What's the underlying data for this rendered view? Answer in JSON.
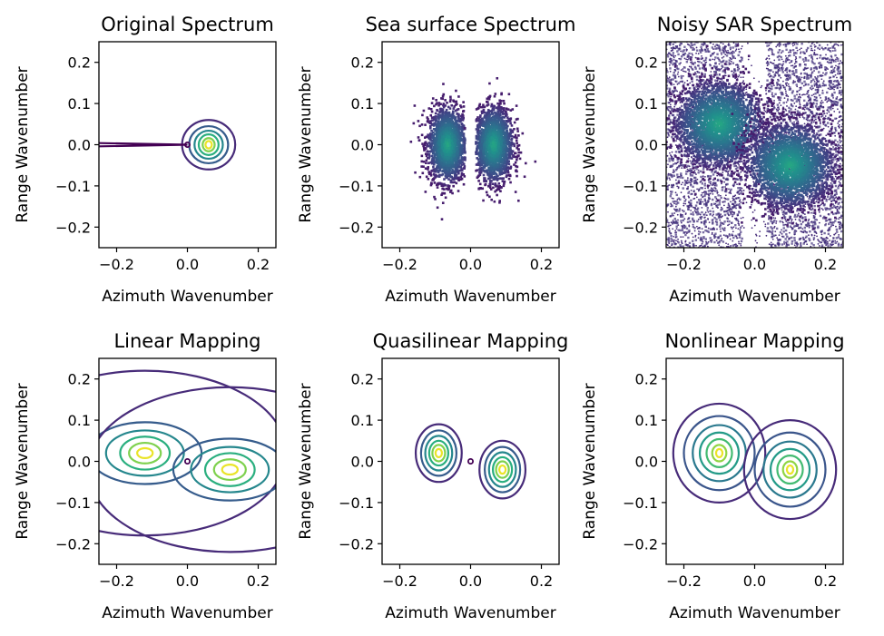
{
  "figure": {
    "palette": [
      "#440154",
      "#472d7b",
      "#3b528b",
      "#2c728e",
      "#21918c",
      "#28ae80",
      "#5ec962",
      "#addc30",
      "#fde725"
    ],
    "frame_color": "#000000",
    "background": "#ffffff"
  },
  "chart_data": [
    {
      "type": "contour",
      "title": "Original Spectrum",
      "xlabel": "Azimuth Wavenumber",
      "ylabel": "Range Wavenumber",
      "xlim": [
        -0.25,
        0.25
      ],
      "ylim": [
        -0.25,
        0.25
      ],
      "xticks": [
        -0.2,
        0.0,
        0.2
      ],
      "xtick_labels": [
        "−0.2",
        "0.0",
        "0.2"
      ],
      "yticks": [
        -0.2,
        -0.1,
        0.0,
        0.1,
        0.2
      ],
      "ytick_labels": [
        "−0.2",
        "−0.1",
        "0.0",
        "0.1",
        "0.2"
      ],
      "grid": false,
      "features": [
        {
          "kind": "contours",
          "center": [
            0.06,
            0.0
          ],
          "half_widths": [
            [
              0.075,
              0.06
            ],
            [
              0.055,
              0.045
            ],
            [
              0.04,
              0.034
            ],
            [
              0.028,
              0.025
            ],
            [
              0.017,
              0.016
            ],
            [
              0.009,
              0.009
            ]
          ]
        },
        {
          "kind": "singularity",
          "center": [
            0.0,
            0.0
          ],
          "level_color": "#440154"
        },
        {
          "kind": "streak",
          "from": [
            -0.25,
            0.0
          ],
          "to": [
            0.0,
            0.0
          ],
          "half_width": 0.004
        }
      ]
    },
    {
      "type": "scatter",
      "title": "Sea surface Spectrum",
      "xlabel": "Azimuth Wavenumber",
      "ylabel": "Range Wavenumber",
      "xlim": [
        -0.25,
        0.25
      ],
      "ylim": [
        -0.25,
        0.25
      ],
      "xticks": [
        -0.2,
        0.0,
        0.2
      ],
      "xtick_labels": [
        "−0.2",
        "0.0",
        "0.2"
      ],
      "yticks": [
        -0.2,
        -0.1,
        0.0,
        0.1,
        0.2
      ],
      "ytick_labels": [
        "−0.2",
        "−0.1",
        "0.0",
        "0.1",
        "0.2"
      ],
      "grid": false,
      "clusters": [
        {
          "center": [
            -0.065,
            0.0
          ],
          "radius": [
            0.055,
            0.09
          ],
          "density": "high"
        },
        {
          "center": [
            0.065,
            0.0
          ],
          "radius": [
            0.055,
            0.09
          ],
          "density": "high"
        }
      ]
    },
    {
      "type": "scatter",
      "title": "Noisy SAR Spectrum",
      "xlabel": "Azimuth Wavenumber",
      "ylabel": "Range Wavenumber",
      "xlim": [
        -0.25,
        0.25
      ],
      "ylim": [
        -0.25,
        0.25
      ],
      "xticks": [
        -0.2,
        0.0,
        0.2
      ],
      "xtick_labels": [
        "−0.2",
        "0.0",
        "0.2"
      ],
      "yticks": [
        -0.2,
        -0.1,
        0.0,
        0.1,
        0.2
      ],
      "ytick_labels": [
        "−0.2",
        "−0.1",
        "0.0",
        "0.1",
        "0.2"
      ],
      "grid": false,
      "clusters": [
        {
          "center": [
            -0.1,
            0.05
          ],
          "radius": [
            0.12,
            0.1
          ],
          "density": "high"
        },
        {
          "center": [
            0.1,
            -0.05
          ],
          "radius": [
            0.12,
            0.1
          ],
          "density": "high"
        }
      ],
      "background_noise": true,
      "sparse_band": {
        "axis": "x",
        "center": 0.0,
        "half_width": 0.03
      }
    },
    {
      "type": "contour",
      "title": "Linear Mapping",
      "xlabel": "Azimuth Wavenumber",
      "ylabel": "Range Wavenumber",
      "xlim": [
        -0.25,
        0.25
      ],
      "ylim": [
        -0.25,
        0.25
      ],
      "xticks": [
        -0.2,
        0.0,
        0.2
      ],
      "xtick_labels": [
        "−0.2",
        "0.0",
        "0.2"
      ],
      "yticks": [
        -0.2,
        -0.1,
        0.0,
        0.1,
        0.2
      ],
      "ytick_labels": [
        "−0.2",
        "−0.1",
        "0.0",
        "0.1",
        "0.2"
      ],
      "grid": false,
      "features": [
        {
          "kind": "contours",
          "center": [
            -0.12,
            0.02
          ],
          "half_widths": [
            [
              0.4,
              0.2
            ],
            [
              0.16,
              0.075
            ],
            [
              0.11,
              0.055
            ],
            [
              0.07,
              0.04
            ],
            [
              0.045,
              0.025
            ],
            [
              0.022,
              0.012
            ]
          ]
        },
        {
          "kind": "contours",
          "center": [
            0.12,
            -0.02
          ],
          "half_widths": [
            [
              0.4,
              0.2
            ],
            [
              0.16,
              0.075
            ],
            [
              0.11,
              0.055
            ],
            [
              0.07,
              0.04
            ],
            [
              0.045,
              0.025
            ],
            [
              0.022,
              0.012
            ]
          ]
        },
        {
          "kind": "singularity",
          "center": [
            0.0,
            0.0
          ],
          "level_color": "#440154"
        }
      ]
    },
    {
      "type": "contour",
      "title": "Quasilinear Mapping",
      "xlabel": "Azimuth Wavenumber",
      "ylabel": "Range Wavenumber",
      "xlim": [
        -0.25,
        0.25
      ],
      "ylim": [
        -0.25,
        0.25
      ],
      "xticks": [
        -0.2,
        0.0,
        0.2
      ],
      "xtick_labels": [
        "−0.2",
        "0.0",
        "0.2"
      ],
      "yticks": [
        -0.2,
        -0.1,
        0.0,
        0.1,
        0.2
      ],
      "ytick_labels": [
        "−0.2",
        "−0.1",
        "0.0",
        "0.1",
        "0.2"
      ],
      "grid": false,
      "features": [
        {
          "kind": "contours",
          "center": [
            -0.09,
            0.02
          ],
          "half_widths": [
            [
              0.065,
              0.07
            ],
            [
              0.05,
              0.055
            ],
            [
              0.038,
              0.042
            ],
            [
              0.027,
              0.03
            ],
            [
              0.018,
              0.02
            ],
            [
              0.009,
              0.01
            ]
          ]
        },
        {
          "kind": "contours",
          "center": [
            0.09,
            -0.02
          ],
          "half_widths": [
            [
              0.065,
              0.07
            ],
            [
              0.05,
              0.055
            ],
            [
              0.038,
              0.042
            ],
            [
              0.027,
              0.03
            ],
            [
              0.018,
              0.02
            ],
            [
              0.009,
              0.01
            ]
          ]
        },
        {
          "kind": "singularity",
          "center": [
            0.0,
            0.0
          ],
          "level_color": "#440154"
        }
      ]
    },
    {
      "type": "contour",
      "title": "Nonlinear Mapping",
      "xlabel": "Azimuth Wavenumber",
      "ylabel": "Range Wavenumber",
      "xlim": [
        -0.25,
        0.25
      ],
      "ylim": [
        -0.25,
        0.25
      ],
      "xticks": [
        -0.2,
        0.0,
        0.2
      ],
      "xtick_labels": [
        "−0.2",
        "0.0",
        "0.2"
      ],
      "yticks": [
        -0.2,
        -0.1,
        0.0,
        0.1,
        0.2
      ],
      "ytick_labels": [
        "−0.2",
        "−0.1",
        "0.0",
        "0.1",
        "0.2"
      ],
      "grid": false,
      "features": [
        {
          "kind": "contours",
          "center": [
            -0.1,
            0.02
          ],
          "half_widths": [
            [
              0.13,
              0.12
            ],
            [
              0.1,
              0.09
            ],
            [
              0.075,
              0.068
            ],
            [
              0.055,
              0.05
            ],
            [
              0.036,
              0.034
            ],
            [
              0.02,
              0.02
            ],
            [
              0.009,
              0.01
            ]
          ]
        },
        {
          "kind": "contours",
          "center": [
            0.1,
            -0.02
          ],
          "half_widths": [
            [
              0.13,
              0.12
            ],
            [
              0.1,
              0.09
            ],
            [
              0.075,
              0.068
            ],
            [
              0.055,
              0.05
            ],
            [
              0.036,
              0.034
            ],
            [
              0.02,
              0.02
            ],
            [
              0.009,
              0.01
            ]
          ]
        }
      ]
    }
  ]
}
